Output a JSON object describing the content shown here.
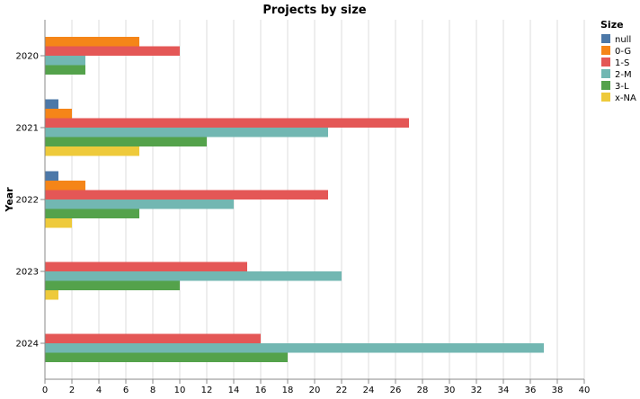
{
  "chart_data": {
    "type": "bar",
    "orientation": "horizontal",
    "title": "Projects by size",
    "ylabel": "Year",
    "xlabel": "",
    "xlim": [
      0,
      40
    ],
    "x_ticks": [
      "0",
      "2",
      "4",
      "6",
      "8",
      "10",
      "12",
      "14",
      "16",
      "18",
      "20",
      "22",
      "24",
      "26",
      "28",
      "30",
      "32",
      "34",
      "36",
      "38",
      "40"
    ],
    "grid": true,
    "legend": {
      "title": "Size",
      "placement": "top-right"
    },
    "categories": [
      "2020",
      "2021",
      "2022",
      "2023",
      "2024"
    ],
    "series": [
      {
        "name": "null",
        "color": "#4c78a8",
        "values": [
          0,
          1,
          1,
          0,
          0
        ]
      },
      {
        "name": "0-G",
        "color": "#f58518",
        "values": [
          7,
          2,
          3,
          0,
          0
        ]
      },
      {
        "name": "1-S",
        "color": "#e45756",
        "values": [
          10,
          27,
          21,
          15,
          16
        ]
      },
      {
        "name": "2-M",
        "color": "#72b7b2",
        "values": [
          3,
          21,
          14,
          22,
          37
        ]
      },
      {
        "name": "3-L",
        "color": "#54a24b",
        "values": [
          3,
          12,
          7,
          10,
          18
        ]
      },
      {
        "name": "x-NA",
        "color": "#eeca3b",
        "values": [
          0,
          7,
          2,
          1,
          0
        ]
      }
    ]
  }
}
